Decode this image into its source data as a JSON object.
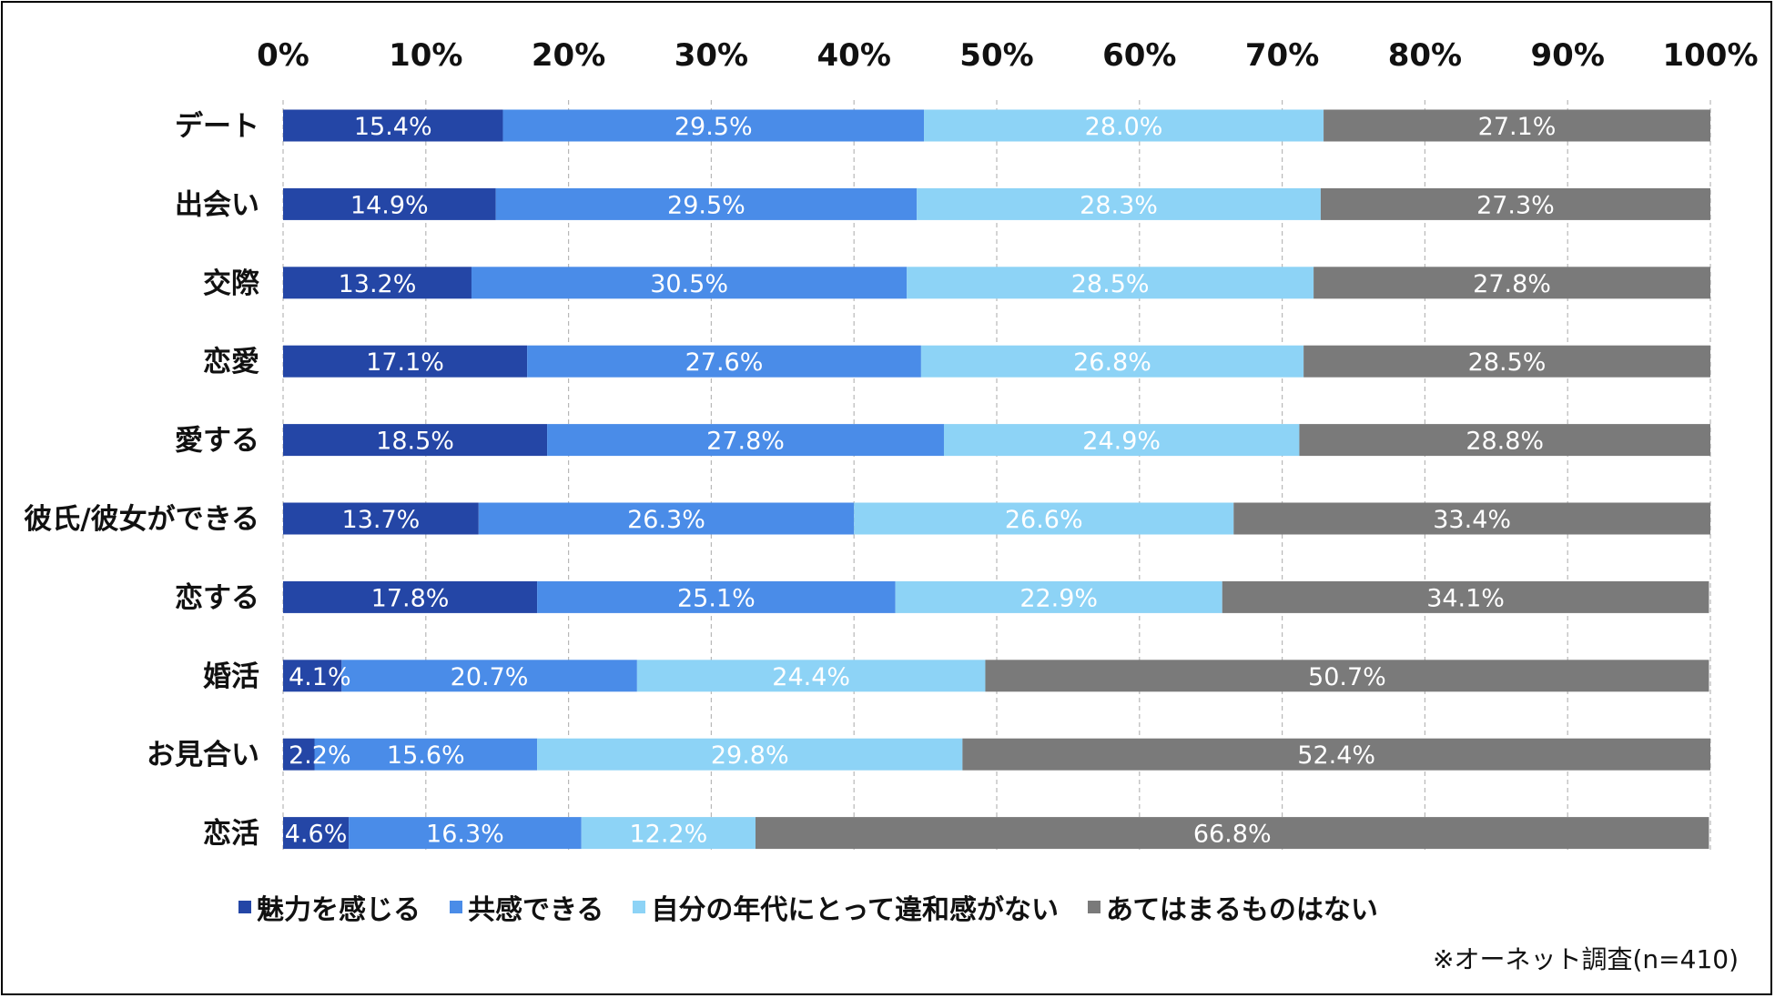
{
  "chart_data": {
    "type": "bar",
    "orientation": "horizontal",
    "stacked": true,
    "percent": true,
    "xlim": [
      0,
      100
    ],
    "ticks": [
      "0%",
      "10%",
      "20%",
      "30%",
      "40%",
      "50%",
      "60%",
      "70%",
      "80%",
      "90%",
      "100%"
    ],
    "categories": [
      "デート",
      "出会い",
      "交際",
      "恋愛",
      "愛する",
      "彼氏/彼女ができる",
      "恋する",
      "婚活",
      "お見合い",
      "恋活"
    ],
    "series": [
      {
        "name": "魅力を感じる",
        "color": "#2446a6",
        "values": [
          15.4,
          14.9,
          13.2,
          17.1,
          18.5,
          13.7,
          17.8,
          4.1,
          2.2,
          4.6
        ],
        "labels": [
          "15.4%",
          "14.9%",
          "13.2%",
          "17.1%",
          "18.5%",
          "13.7%",
          "17.8%",
          "4.1%",
          "2.2%",
          "4.6%"
        ]
      },
      {
        "name": "共感できる",
        "color": "#4a8ce8",
        "values": [
          29.5,
          29.5,
          30.5,
          27.6,
          27.8,
          26.3,
          25.1,
          20.7,
          15.6,
          16.3
        ],
        "labels": [
          "29.5%",
          "29.5%",
          "30.5%",
          "27.6%",
          "27.8%",
          "26.3%",
          "25.1%",
          "20.7%",
          "15.6%",
          "16.3%"
        ]
      },
      {
        "name": "自分の年代にとって違和感がない",
        "color": "#8dd3f6",
        "values": [
          28.0,
          28.3,
          28.5,
          26.8,
          24.9,
          26.6,
          22.9,
          24.4,
          29.8,
          12.2
        ],
        "labels": [
          "28.0%",
          "28.3%",
          "28.5%",
          "26.8%",
          "24.9%",
          "26.6%",
          "22.9%",
          "24.4%",
          "29.8%",
          "12.2%"
        ]
      },
      {
        "name": "あてはまるものはない",
        "color": "#7a7a7a",
        "values": [
          27.1,
          27.3,
          27.8,
          28.5,
          28.8,
          33.4,
          34.1,
          50.7,
          52.4,
          66.8
        ],
        "labels": [
          "27.1%",
          "27.3%",
          "27.8%",
          "28.5%",
          "28.8%",
          "33.4%",
          "34.1%",
          "50.7%",
          "52.4%",
          "66.8%"
        ]
      }
    ],
    "gridlines": true,
    "grid_style": "dashed",
    "legend_position": "bottom",
    "title": "",
    "xlabel": "",
    "ylabel": ""
  },
  "note": "※オーネット調査(n=410)"
}
